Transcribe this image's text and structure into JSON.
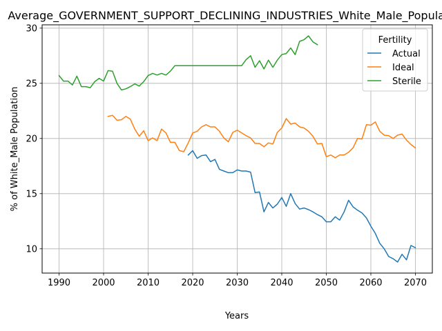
{
  "chart_data": {
    "type": "line",
    "title": "Average_GOVERNMENT_SUPPORT_DECLINING_INDUSTRIES_White_Male_Population",
    "xlabel": "Years",
    "ylabel": "% of White_Male Population",
    "xlim": [
      1986.2,
      2073.8
    ],
    "ylim": [
      7.8,
      30.3
    ],
    "xticks": [
      1990,
      2000,
      2010,
      2020,
      2030,
      2040,
      2050,
      2060,
      2070
    ],
    "yticks": [
      10,
      15,
      20,
      25,
      30
    ],
    "grid": true,
    "legend": {
      "title": "Fertility",
      "position": "top-right"
    },
    "series": [
      {
        "name": "Actual",
        "color": "#1f77b4",
        "x": [
          2019,
          2020,
          2021,
          2022,
          2023,
          2024,
          2025,
          2026,
          2027,
          2028,
          2029,
          2030,
          2031,
          2032,
          2033,
          2034,
          2035,
          2036,
          2037,
          2038,
          2039,
          2040,
          2041,
          2042,
          2043,
          2044,
          2045,
          2046,
          2047,
          2048,
          2049,
          2050,
          2051,
          2052,
          2053,
          2054,
          2055,
          2056,
          2057,
          2058,
          2059,
          2060,
          2061,
          2062,
          2063,
          2064,
          2065,
          2066,
          2067,
          2068,
          2069,
          2070
        ],
        "values": [
          18.5,
          18.9,
          18.2,
          18.45,
          18.5,
          17.9,
          18.1,
          17.2,
          17.05,
          16.9,
          16.9,
          17.15,
          17.05,
          17.05,
          16.95,
          15.1,
          15.15,
          13.35,
          14.2,
          13.7,
          14.05,
          14.65,
          13.85,
          15.0,
          14.1,
          13.6,
          13.7,
          13.55,
          13.35,
          13.1,
          12.9,
          12.45,
          12.45,
          12.9,
          12.6,
          13.35,
          14.4,
          13.8,
          13.5,
          13.25,
          12.8,
          12.05,
          11.4,
          10.5,
          10.0,
          9.3,
          9.1,
          8.8,
          9.5,
          9.0,
          10.3,
          10.1
        ]
      },
      {
        "name": "Ideal",
        "color": "#ff7f0e",
        "x": [
          2001,
          2002,
          2003,
          2004,
          2005,
          2006,
          2007,
          2008,
          2009,
          2010,
          2011,
          2012,
          2013,
          2014,
          2015,
          2016,
          2017,
          2018,
          2019,
          2020,
          2021,
          2022,
          2023,
          2024,
          2025,
          2026,
          2027,
          2028,
          2029,
          2030,
          2031,
          2032,
          2033,
          2034,
          2035,
          2036,
          2037,
          2038,
          2039,
          2040,
          2041,
          2042,
          2043,
          2044,
          2045,
          2046,
          2047,
          2048,
          2049,
          2050,
          2051,
          2052,
          2053,
          2054,
          2055,
          2056,
          2057,
          2058,
          2059,
          2060,
          2061,
          2062,
          2063,
          2064,
          2065,
          2066,
          2067,
          2068,
          2069,
          2070
        ],
        "values": [
          22.0,
          22.1,
          21.65,
          21.7,
          22.0,
          21.75,
          20.85,
          20.2,
          20.7,
          19.8,
          20.05,
          19.8,
          20.85,
          20.5,
          19.65,
          19.65,
          18.9,
          18.8,
          19.6,
          20.5,
          20.65,
          21.05,
          21.25,
          21.05,
          21.05,
          20.65,
          20.05,
          19.7,
          20.55,
          20.75,
          20.5,
          20.25,
          20.05,
          19.55,
          19.55,
          19.25,
          19.6,
          19.5,
          20.55,
          20.95,
          21.8,
          21.3,
          21.4,
          21.05,
          20.95,
          20.65,
          20.2,
          19.5,
          19.55,
          18.35,
          18.5,
          18.25,
          18.5,
          18.5,
          18.75,
          19.15,
          20.0,
          19.95,
          21.25,
          21.2,
          21.5,
          20.65,
          20.3,
          20.25,
          20.0,
          20.3,
          20.4,
          19.85,
          19.45,
          19.15
        ]
      },
      {
        "name": "Sterile",
        "color": "#2ca02c",
        "x": [
          1990,
          1991,
          1992,
          1993,
          1994,
          1995,
          1996,
          1997,
          1998,
          1999,
          2000,
          2001,
          2002,
          2003,
          2004,
          2005,
          2006,
          2007,
          2008,
          2009,
          2010,
          2011,
          2012,
          2013,
          2014,
          2015,
          2016,
          2017,
          2018,
          2019,
          2020,
          2021,
          2022,
          2023,
          2024,
          2025,
          2026,
          2027,
          2028,
          2029,
          2030,
          2031,
          2032,
          2033,
          2034,
          2035,
          2036,
          2037,
          2038,
          2039,
          2040,
          2041,
          2042,
          2043,
          2044,
          2045,
          2046,
          2047,
          2048
        ],
        "values": [
          25.7,
          25.2,
          25.2,
          24.85,
          25.65,
          24.7,
          24.7,
          24.6,
          25.15,
          25.45,
          25.2,
          26.15,
          26.1,
          25.0,
          24.4,
          24.5,
          24.7,
          24.95,
          24.75,
          25.15,
          25.7,
          25.9,
          25.75,
          25.9,
          25.75,
          26.1,
          26.6,
          26.6,
          26.6,
          26.6,
          26.6,
          26.6,
          26.6,
          26.6,
          26.6,
          26.6,
          26.6,
          26.6,
          26.6,
          26.6,
          26.6,
          26.6,
          27.15,
          27.5,
          26.45,
          27.05,
          26.3,
          27.1,
          26.45,
          27.1,
          27.6,
          27.7,
          28.2,
          27.6,
          28.8,
          28.95,
          29.3,
          28.75,
          28.5
        ]
      }
    ]
  }
}
